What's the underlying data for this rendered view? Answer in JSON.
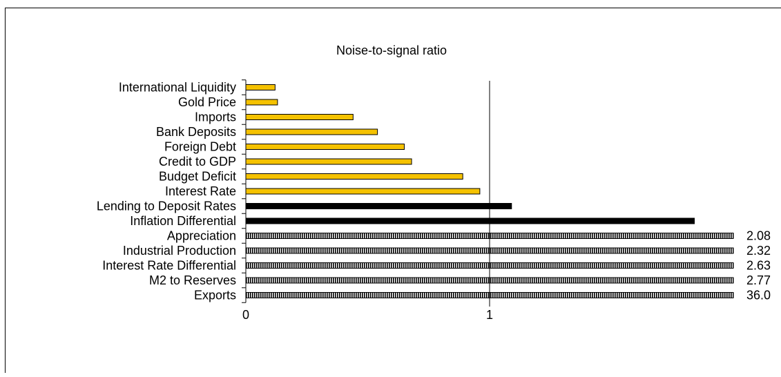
{
  "chart_data": {
    "type": "bar",
    "orientation": "horizontal",
    "title": "Noise-to-signal ratio",
    "xlabel": "",
    "ylabel": "",
    "xlim": [
      0,
      2
    ],
    "x_ticks": [
      "0",
      "1"
    ],
    "reference_line": 1,
    "grid": false,
    "categories": [
      "International Liquidity",
      "Gold Price",
      "Imports",
      "Bank Deposits",
      "Foreign Debt",
      "Credit to GDP",
      "Budget Deficit",
      "Interest Rate",
      "Lending to Deposit Rates",
      "Inflation Differential",
      "Appreciation",
      "Industrial Production",
      "Interest Rate Differential",
      "M2 to Reserves",
      "Exports"
    ],
    "values": [
      0.12,
      0.13,
      0.44,
      0.54,
      0.65,
      0.68,
      0.89,
      0.96,
      1.09,
      1.84,
      2.08,
      2.32,
      2.63,
      2.77,
      36.0
    ],
    "value_labels": [
      "",
      "",
      "",
      "",
      "",
      "",
      "",
      "",
      "",
      "",
      "2.08",
      "2.32",
      "2.63",
      "2.77",
      "36.0"
    ],
    "styles": [
      "gold",
      "gold",
      "gold",
      "gold",
      "gold",
      "gold",
      "gold",
      "gold",
      "black",
      "black",
      "striped",
      "striped",
      "striped",
      "striped",
      "striped"
    ],
    "colors": {
      "gold": "#f5c200",
      "black": "#000000",
      "stripe": "#000000",
      "stripe_bg": "#ffffff"
    }
  }
}
